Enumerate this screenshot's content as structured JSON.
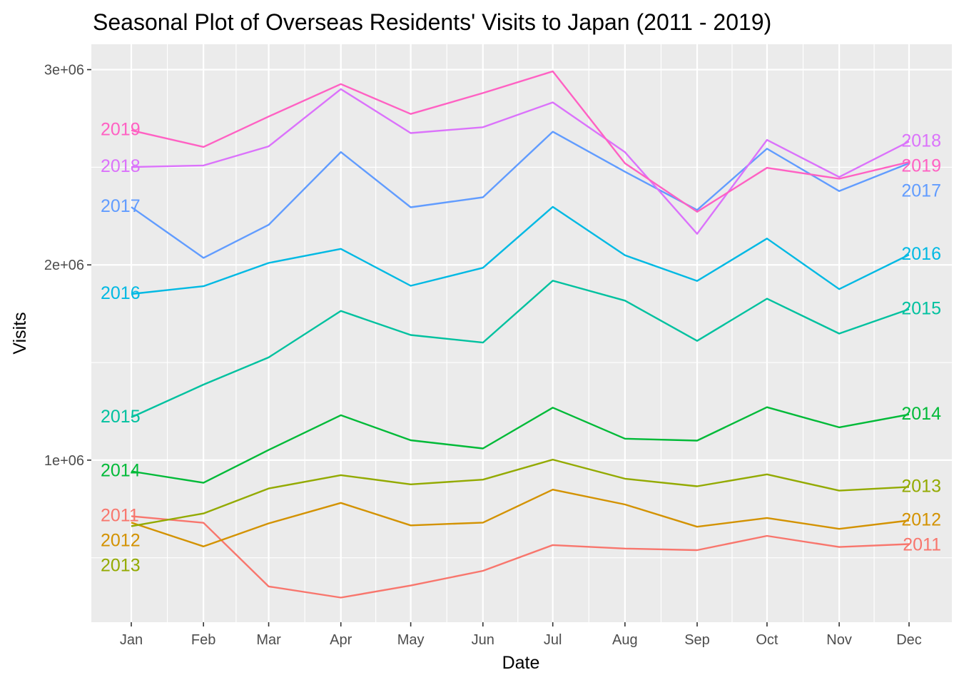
{
  "chart_data": {
    "type": "line",
    "title": "Seasonal Plot of Overseas Residents' Visits to Japan (2011 - 2019)",
    "xlabel": "Date",
    "ylabel": "Visits",
    "categories": [
      "Jan",
      "Feb",
      "Mar",
      "Apr",
      "May",
      "Jun",
      "Jul",
      "Aug",
      "Sep",
      "Oct",
      "Nov",
      "Dec"
    ],
    "y_ticks": [
      {
        "value": 1000000,
        "label": "1e+06"
      },
      {
        "value": 2000000,
        "label": "2e+06"
      },
      {
        "value": 3000000,
        "label": "3e+06"
      }
    ],
    "ylim": [
      170000,
      3130000
    ],
    "grid": true,
    "background": "#EBEBEB",
    "series": [
      {
        "name": "2011",
        "color": "#F8766D",
        "values": [
          713000,
          679000,
          353000,
          296000,
          358000,
          433000,
          565000,
          547000,
          539000,
          612000,
          555000,
          570000
        ]
      },
      {
        "name": "2012",
        "color": "#D39200",
        "values": [
          680000,
          558000,
          676000,
          781000,
          666000,
          680000,
          849000,
          773000,
          659000,
          704000,
          648000,
          691000
        ]
      },
      {
        "name": "2013",
        "color": "#93AA00",
        "values": [
          662000,
          727000,
          855000,
          923000,
          876000,
          900000,
          1003000,
          905000,
          866000,
          927000,
          844000,
          863000
        ]
      },
      {
        "name": "2014",
        "color": "#00BA38",
        "values": [
          943000,
          884000,
          1052000,
          1230000,
          1102000,
          1060000,
          1269000,
          1110000,
          1100000,
          1271000,
          1168000,
          1234000
        ]
      },
      {
        "name": "2015",
        "color": "#00C19F",
        "values": [
          1219000,
          1387000,
          1526000,
          1764000,
          1641000,
          1602000,
          1919000,
          1817000,
          1611000,
          1827000,
          1648000,
          1773000
        ]
      },
      {
        "name": "2016",
        "color": "#00B9E3",
        "values": [
          1851000,
          1891000,
          2010000,
          2082000,
          1893000,
          1985000,
          2297000,
          2049000,
          1918000,
          2135000,
          1876000,
          2052000
        ]
      },
      {
        "name": "2017",
        "color": "#619CFF",
        "values": [
          2296000,
          2036000,
          2205000,
          2578000,
          2295000,
          2346000,
          2682000,
          2477000,
          2281000,
          2595000,
          2378000,
          2521000
        ]
      },
      {
        "name": "2018",
        "color": "#DB72FB",
        "values": [
          2501000,
          2509000,
          2607000,
          2900000,
          2675000,
          2705000,
          2832000,
          2577000,
          2159000,
          2640000,
          2450000,
          2632000
        ]
      },
      {
        "name": "2019",
        "color": "#FF61C3",
        "values": [
          2689000,
          2604000,
          2760000,
          2926000,
          2773000,
          2880000,
          2991000,
          2520000,
          2272000,
          2497000,
          2441000,
          2527000
        ]
      }
    ]
  }
}
